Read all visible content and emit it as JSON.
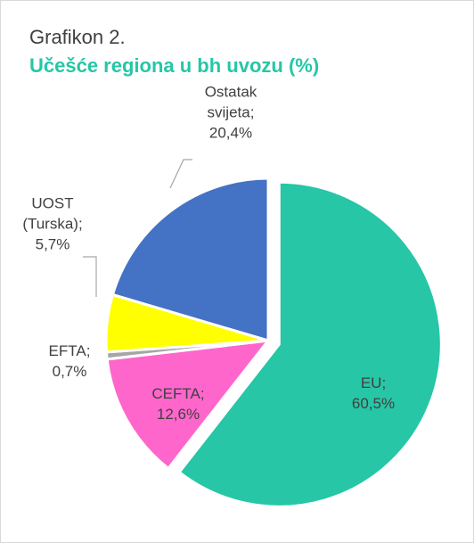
{
  "chart_data": {
    "type": "pie",
    "title": "Grafikon 2.",
    "subtitle": "Učešće regiona u bh uvozu (%)",
    "categories": [
      "EU;",
      "CEFTA;",
      "EFTA;",
      "UOST (Turska);",
      "Ostatak svijeta;"
    ],
    "values": [
      60.5,
      12.6,
      0.7,
      5.7,
      20.4
    ],
    "value_labels": [
      "60,5%",
      "12,6%",
      "0,7%",
      "5,7%",
      "20,4%"
    ],
    "colors": [
      "#26c6a6",
      "#ff66cc",
      "#a6a6a6",
      "#ffff00",
      "#4472c4"
    ]
  }
}
